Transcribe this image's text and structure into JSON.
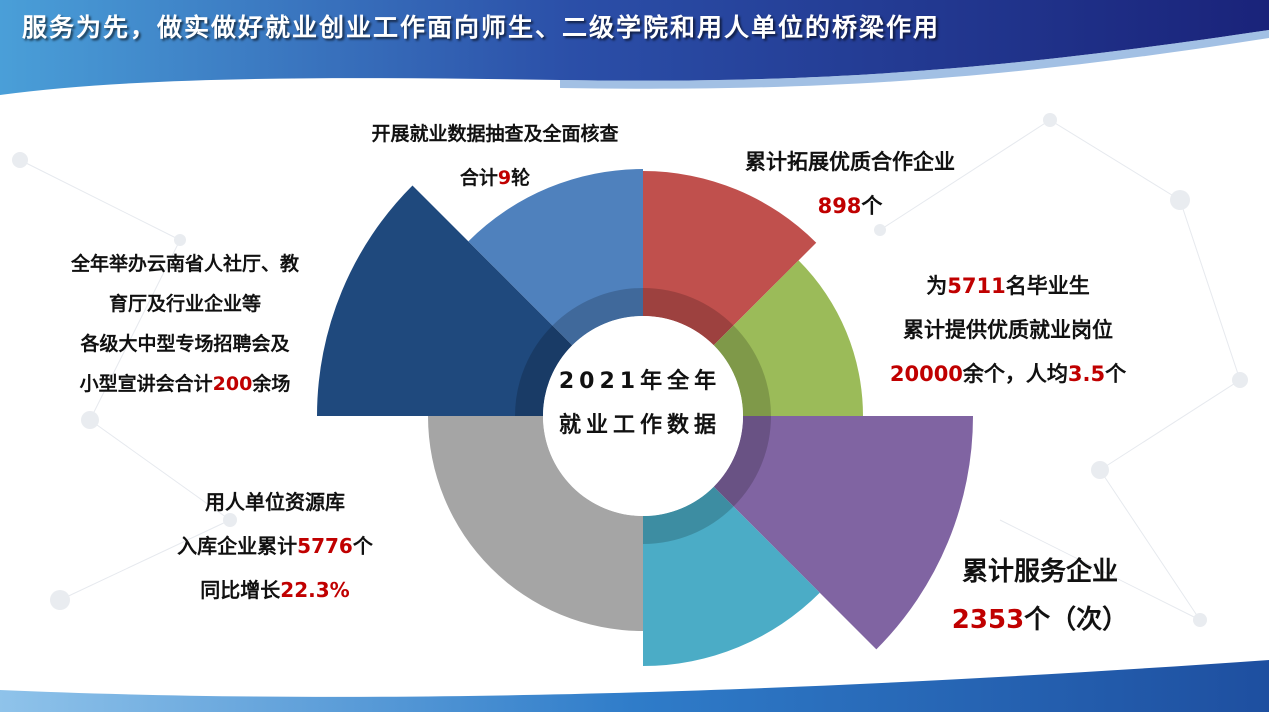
{
  "title": "服务为先，做实做好就业创业工作面向师生、二级学院和用人单位的桥梁作用",
  "center": {
    "line1": "2021年全年",
    "line2": "就业工作数据"
  },
  "colors": {
    "red": "#c0504d",
    "green": "#9bbb59",
    "purple": "#8064a2",
    "teal": "#4bacc6",
    "orange": "#f79646",
    "gray": "#a5a5a5",
    "navy": "#1f497d",
    "blue": "#4f81bd",
    "highlight": "#c00000",
    "header": "#1c2f8a"
  },
  "segments": [
    {
      "key": "enterprises",
      "color": "#c0504d",
      "lines": [
        [
          {
            "t": "累计拓展优质合作企业"
          }
        ],
        [
          {
            "t": "898",
            "hl": true
          },
          {
            "t": "个"
          }
        ]
      ]
    },
    {
      "key": "jobs",
      "color": "#9bbb59",
      "lines": [
        [
          {
            "t": "为"
          },
          {
            "t": "5711",
            "hl": true
          },
          {
            "t": "名毕业生"
          }
        ],
        [
          {
            "t": "累计提供优质就业岗位"
          }
        ],
        [
          {
            "t": "20000",
            "hl": true
          },
          {
            "t": "余个，人均"
          },
          {
            "t": "3.5",
            "hl": true
          },
          {
            "t": "个"
          }
        ]
      ]
    },
    {
      "key": "services",
      "color": "#8064a2",
      "lines": [
        [
          {
            "t": "累计服务企业"
          }
        ],
        [
          {
            "t": "2353",
            "hl": true
          },
          {
            "t": "个（次）"
          }
        ]
      ]
    },
    {
      "key": "resource",
      "color": "#4bacc6",
      "lines": [
        [
          {
            "t": "用人单位资源库"
          }
        ],
        [
          {
            "t": "入库企业累计"
          },
          {
            "t": "5776",
            "hl": true
          },
          {
            "t": "个"
          }
        ],
        [
          {
            "t": "同比增长"
          },
          {
            "t": "22.3%",
            "hl": true
          }
        ]
      ]
    },
    {
      "key": "fairs",
      "color": "#1f497d",
      "lines": [
        [
          {
            "t": "全年举办云南省人社厅、教"
          }
        ],
        [
          {
            "t": "育厅及行业企业等"
          }
        ],
        [
          {
            "t": "各级大中型专场招聘会及"
          }
        ],
        [
          {
            "t": "小型宣讲会合计"
          },
          {
            "t": "200",
            "hl": true
          },
          {
            "t": "余场"
          }
        ]
      ]
    },
    {
      "key": "checks",
      "color": "#4f81bd",
      "lines": [
        [
          {
            "t": "开展就业数据抽查及全面核查"
          }
        ],
        [
          {
            "t": "合计"
          },
          {
            "t": "9",
            "hl": true
          },
          {
            "t": "轮"
          }
        ]
      ]
    }
  ]
}
